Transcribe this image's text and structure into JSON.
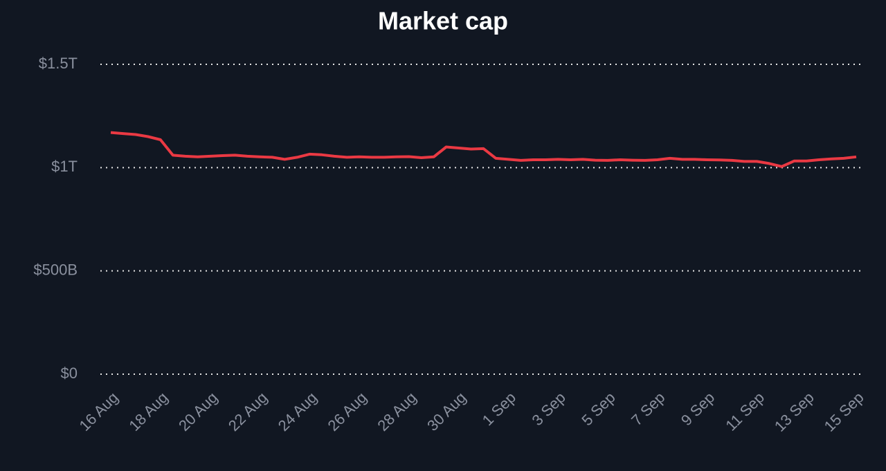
{
  "chart_data": {
    "type": "line",
    "title": "Market cap",
    "x": [
      "16 Aug",
      null,
      null,
      null,
      "18 Aug",
      null,
      null,
      null,
      "20 Aug",
      null,
      null,
      null,
      "22 Aug",
      null,
      null,
      null,
      "24 Aug",
      null,
      null,
      null,
      "26 Aug",
      null,
      null,
      null,
      "28 Aug",
      null,
      null,
      null,
      "30 Aug",
      null,
      null,
      null,
      "1 Sep",
      null,
      null,
      null,
      "3 Sep",
      null,
      null,
      null,
      "5 Sep",
      null,
      null,
      null,
      "7 Sep",
      null,
      null,
      null,
      "9 Sep",
      null,
      null,
      null,
      "11 Sep",
      null,
      null,
      null,
      "13 Sep",
      null,
      null,
      null,
      "15 Sep"
    ],
    "series": [
      {
        "color": "#ea3943",
        "values": [
          1170,
          1165,
          1160,
          1150,
          1135,
          1060,
          1055,
          1052,
          1055,
          1058,
          1060,
          1055,
          1052,
          1050,
          1040,
          1050,
          1065,
          1062,
          1055,
          1050,
          1052,
          1050,
          1050,
          1052,
          1053,
          1048,
          1052,
          1100,
          1095,
          1090,
          1092,
          1045,
          1040,
          1035,
          1038,
          1038,
          1040,
          1038,
          1040,
          1036,
          1035,
          1038,
          1036,
          1035,
          1038,
          1045,
          1040,
          1040,
          1038,
          1037,
          1035,
          1030,
          1030,
          1020,
          1005,
          1032,
          1032,
          1038,
          1042,
          1045,
          1052
        ]
      }
    ],
    "ylim": [
      0,
      1500
    ],
    "yticks": [
      {
        "value": 0,
        "label": "$0"
      },
      {
        "value": 500,
        "label": "$500B"
      },
      {
        "value": 1000,
        "label": "$1T"
      },
      {
        "value": 1500,
        "label": "$1.5T"
      }
    ],
    "grid": true
  }
}
